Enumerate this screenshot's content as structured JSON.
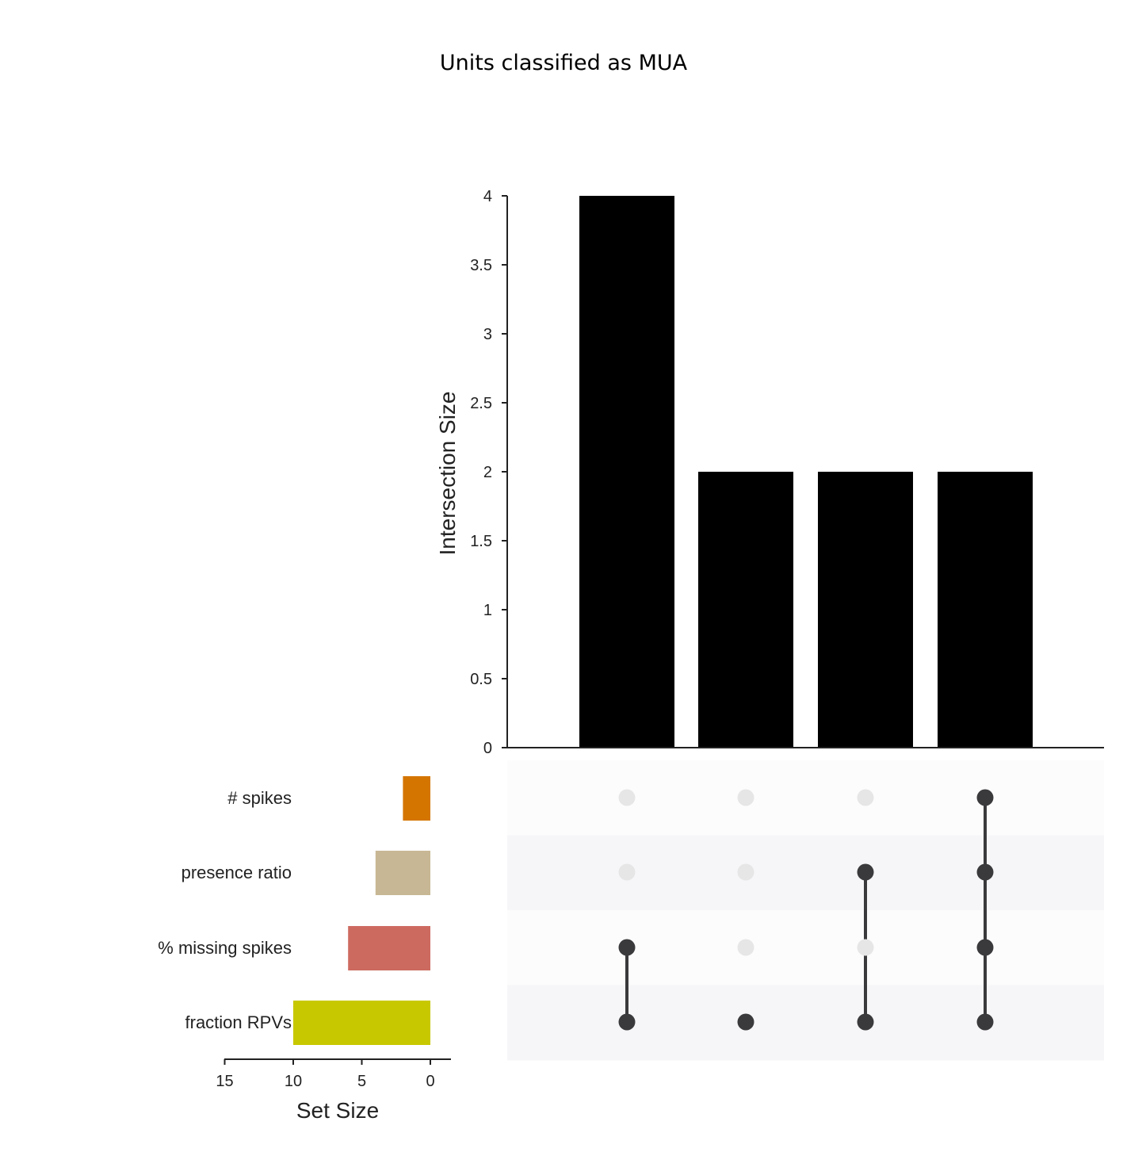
{
  "chart_data": {
    "type": "upset",
    "title": "Units classified as MUA",
    "intersection_axis": {
      "label": "Intersection Size",
      "ylim": [
        0,
        4
      ],
      "ticks": [
        "0",
        "0.5",
        "1",
        "1.5",
        "2",
        "2.5",
        "3",
        "3.5",
        "4"
      ]
    },
    "set_size_axis": {
      "label": "Set Size",
      "xlim": [
        15,
        0
      ],
      "ticks": [
        "15",
        "10",
        "5",
        "0"
      ]
    },
    "sets": [
      {
        "name": "# spikes",
        "size": 2,
        "color": "#d47500"
      },
      {
        "name": "presence ratio",
        "size": 4,
        "color": "#c8b794"
      },
      {
        "name": "% missing spikes",
        "size": 6,
        "color": "#cd6a60"
      },
      {
        "name": "fraction RPVs",
        "size": 10,
        "color": "#c8c800"
      }
    ],
    "intersections": [
      {
        "members": [
          "% missing spikes",
          "fraction RPVs"
        ],
        "size": 4
      },
      {
        "members": [
          "fraction RPVs"
        ],
        "size": 2
      },
      {
        "members": [
          "presence ratio",
          "fraction RPVs"
        ],
        "size": 2
      },
      {
        "members": [
          "# spikes",
          "presence ratio",
          "% missing spikes",
          "fraction RPVs"
        ],
        "size": 2
      }
    ],
    "colors": {
      "bar": "#000000",
      "dot_active": "#3a3a3c",
      "dot_inactive": "#e6e6e6",
      "row_band_light": "#fcfcfd",
      "row_band_dark": "#f6f5f8"
    }
  }
}
